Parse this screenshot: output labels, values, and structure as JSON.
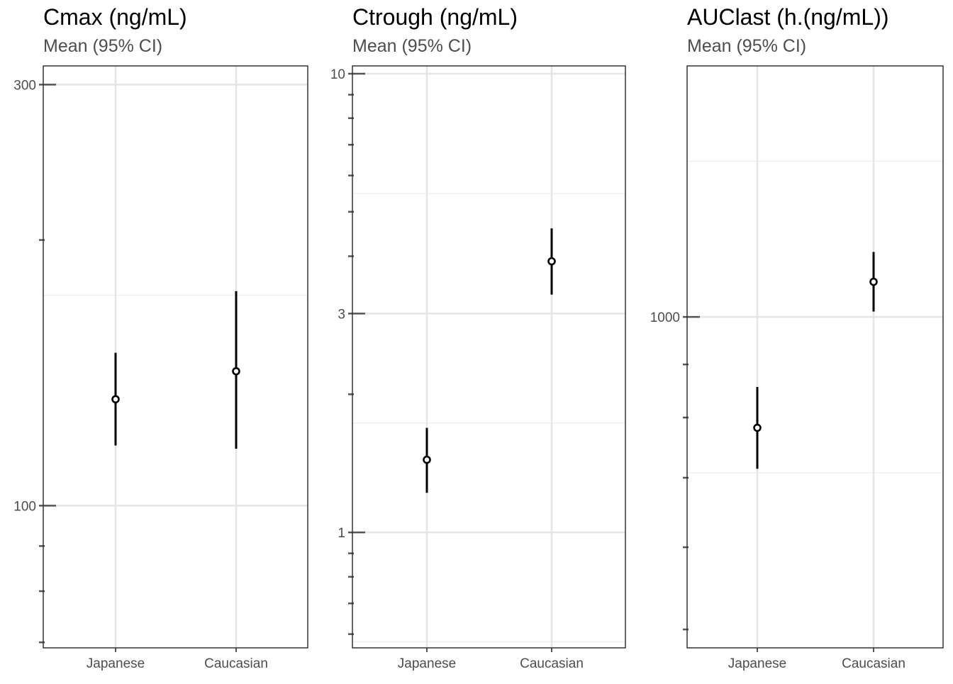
{
  "panel_subtitle": "Mean (95% CI)",
  "colors": {
    "grid": "#e5e5e5",
    "grid_minor": "#f0f0f0",
    "frame": "#333333",
    "tick": "#555555",
    "tick_label": "#4d4d4d",
    "point": "#000000",
    "title": "#000000",
    "subtitle": "#4d4d4d"
  },
  "chart_data": [
    {
      "type": "scatter",
      "title": "Cmax (ng/mL)",
      "subtitle": "Mean (95% CI)",
      "scale": "log10",
      "categories": [
        "Japanese",
        "Caucasian"
      ],
      "ylim": [
        69,
        315
      ],
      "yticks": [
        100,
        300
      ],
      "ytick_labels": [
        "100",
        "300"
      ],
      "grid": true,
      "series": [
        {
          "points": [
            {
              "x": "Japanese",
              "y": 132,
              "lo": 117,
              "hi": 149
            },
            {
              "x": "Caucasian",
              "y": 142,
              "lo": 116,
              "hi": 175
            }
          ]
        }
      ]
    },
    {
      "type": "scatter",
      "title": "Ctrough (ng/mL)",
      "subtitle": "Mean (95% CI)",
      "scale": "log10",
      "categories": [
        "Japanese",
        "Caucasian"
      ],
      "ylim": [
        0.56,
        10.4
      ],
      "yticks": [
        1,
        3,
        10
      ],
      "ytick_labels": [
        "1",
        "3",
        "10"
      ],
      "grid": true,
      "series": [
        {
          "points": [
            {
              "x": "Japanese",
              "y": 1.44,
              "lo": 1.22,
              "hi": 1.69
            },
            {
              "x": "Caucasian",
              "y": 3.9,
              "lo": 3.3,
              "hi": 4.6
            }
          ]
        }
      ]
    },
    {
      "type": "scatter",
      "title": "AUClast (h.(ng/mL))",
      "subtitle": "Mean (95% CI)",
      "scale": "log10",
      "categories": [
        "Japanese",
        "Caucasian"
      ],
      "ylim": [
        480,
        1745
      ],
      "yticks": [
        1000
      ],
      "ytick_labels": [
        "1000"
      ],
      "grid": true,
      "series": [
        {
          "points": [
            {
              "x": "Japanese",
              "y": 782,
              "lo": 714,
              "hi": 856
            },
            {
              "x": "Caucasian",
              "y": 1081,
              "lo": 1012,
              "hi": 1155
            }
          ]
        }
      ]
    }
  ]
}
